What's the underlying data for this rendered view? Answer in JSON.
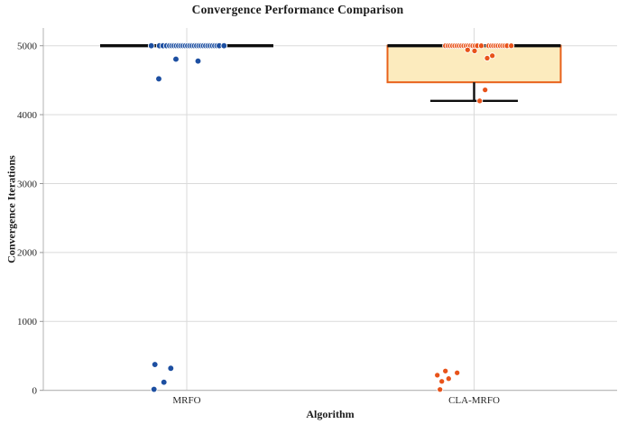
{
  "chart_data": {
    "type": "boxplot",
    "title": "Convergence Performance Comparison",
    "xlabel": "Algorithm",
    "ylabel": "Convergence Iterations",
    "ylim": [
      0,
      5258
    ],
    "yticks": [
      0,
      1000,
      2000,
      3000,
      4000,
      5000
    ],
    "grid": "on",
    "legend": "none",
    "categories": [
      "MRFO",
      "CLA-MRFO"
    ],
    "series": [
      {
        "name": "MRFO",
        "point_color": "#1d4fa1",
        "box_fill": "none",
        "box_edge": "#0d0d0d",
        "box": {
          "whisker_low": 5000,
          "q1": 5000,
          "median": 5000,
          "q3": 5000,
          "whisker_high": 5000
        },
        "points": [
          [
            -39.3,
            5000
          ],
          [
            -30.3,
            5000
          ],
          [
            -26.3,
            5000
          ],
          [
            -22.3,
            5000
          ],
          [
            -19,
            5000
          ],
          [
            -16.5,
            5000
          ],
          [
            -14,
            5000
          ],
          [
            -11.5,
            5000
          ],
          [
            -9,
            5000
          ],
          [
            -6.5,
            5000
          ],
          [
            -4,
            5000
          ],
          [
            -1.5,
            5000
          ],
          [
            1,
            5000
          ],
          [
            3.5,
            5000
          ],
          [
            6,
            5000
          ],
          [
            8.5,
            5000
          ],
          [
            11,
            5000
          ],
          [
            13.5,
            5000
          ],
          [
            16,
            5000
          ],
          [
            18.5,
            5000
          ],
          [
            21,
            5000
          ],
          [
            23.5,
            5000
          ],
          [
            26,
            5000
          ],
          [
            28.5,
            5000
          ],
          [
            31,
            5000
          ],
          [
            33.5,
            5000
          ],
          [
            36,
            5000
          ],
          [
            41.3,
            5000
          ],
          [
            -12,
            4805
          ],
          [
            12.5,
            4778
          ],
          [
            -31,
            4520
          ],
          [
            -35.3,
            375
          ],
          [
            -17.7,
            320
          ],
          [
            -25.3,
            118
          ],
          [
            -36.3,
            15
          ]
        ]
      },
      {
        "name": "CLA-MRFO",
        "point_color": "#e8531a",
        "box_fill": "#fcebbe",
        "box_edge": "#e8611a",
        "box": {
          "whisker_low": 4200,
          "q1": 4470,
          "median": 5000,
          "q3": 5000,
          "whisker_high": 5000
        },
        "points": [
          [
            -31.8,
            5000
          ],
          [
            -29,
            5000
          ],
          [
            -26.5,
            5000
          ],
          [
            -24,
            5000
          ],
          [
            -21.5,
            5000
          ],
          [
            -19,
            5000
          ],
          [
            -16.5,
            5000
          ],
          [
            -14,
            5000
          ],
          [
            -11.5,
            5000
          ],
          [
            -9,
            5000
          ],
          [
            -6.5,
            5000
          ],
          [
            -4,
            5000
          ],
          [
            -1.5,
            5000
          ],
          [
            1,
            5000
          ],
          [
            3.5,
            5000
          ],
          [
            8,
            5000
          ],
          [
            16.2,
            5000
          ],
          [
            19,
            5000
          ],
          [
            21.5,
            5000
          ],
          [
            24,
            5000
          ],
          [
            26.5,
            5000
          ],
          [
            29,
            5000
          ],
          [
            31.5,
            5000
          ],
          [
            34,
            5000
          ],
          [
            36.5,
            5000
          ],
          [
            41.2,
            5000
          ],
          [
            -7.2,
            4940
          ],
          [
            0.5,
            4925
          ],
          [
            20.2,
            4855
          ],
          [
            14.5,
            4820
          ],
          [
            12.2,
            4360
          ],
          [
            6.2,
            4200
          ],
          [
            -40.8,
            220
          ],
          [
            -31.8,
            280
          ],
          [
            -18.8,
            255
          ],
          [
            -35.8,
            130
          ],
          [
            -28.2,
            170
          ],
          [
            -37.8,
            12
          ]
        ]
      }
    ],
    "style": {
      "grid_color": "#dadada",
      "axis_color": "#b3b3b3",
      "tick_color": "#999999",
      "tick_label_color": "#262626",
      "whisker_color": "#0d0d0d"
    }
  }
}
